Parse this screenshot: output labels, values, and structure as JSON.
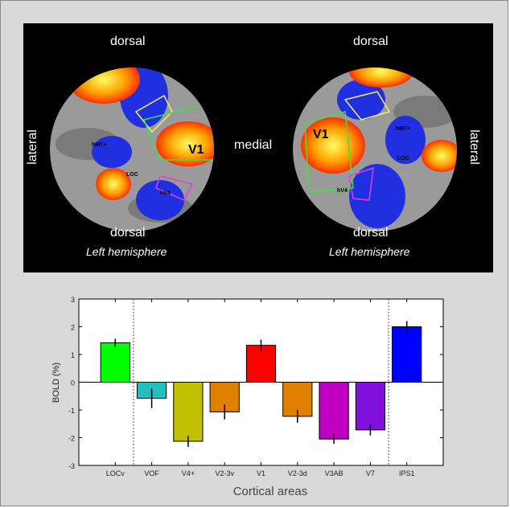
{
  "maps": {
    "left": {
      "top": "dorsal",
      "bottom": "dorsal",
      "side": "lateral",
      "caption": "Left hemisphere",
      "labels": [
        "V1",
        "hMT+",
        "LOC",
        "hV4"
      ]
    },
    "right": {
      "top": "dorsal",
      "bottom": "dorsal",
      "side": "lateral",
      "caption": "Left hemisphere",
      "labels": [
        "V1",
        "hMT+",
        "LOC",
        "hV4"
      ]
    },
    "center": "medial"
  },
  "chart_data": {
    "type": "bar",
    "categories": [
      "LOCv",
      "VOF",
      "V4+",
      "V2-3v",
      "V1",
      "V2-3d",
      "V3AB",
      "V7",
      "IPS1"
    ],
    "values": [
      1.42,
      -0.58,
      -2.13,
      -1.07,
      1.33,
      -1.23,
      -2.05,
      -1.72,
      2.0
    ],
    "errors": [
      0.15,
      0.35,
      0.2,
      0.27,
      0.2,
      0.23,
      0.17,
      0.2,
      0.2
    ],
    "colors": [
      "#00ff00",
      "#20c0c0",
      "#c0c000",
      "#e08000",
      "#ff0000",
      "#e08000",
      "#c000c0",
      "#8010e0",
      "#0000ff"
    ],
    "xlabel": "Cortical areas",
    "ylabel": "BOLD (%)",
    "ylim": [
      -3,
      3
    ],
    "yticks": [
      -3,
      -2,
      -1,
      0,
      1,
      2,
      3
    ],
    "separators_after": [
      "LOCv",
      "V7"
    ],
    "grid": false
  }
}
